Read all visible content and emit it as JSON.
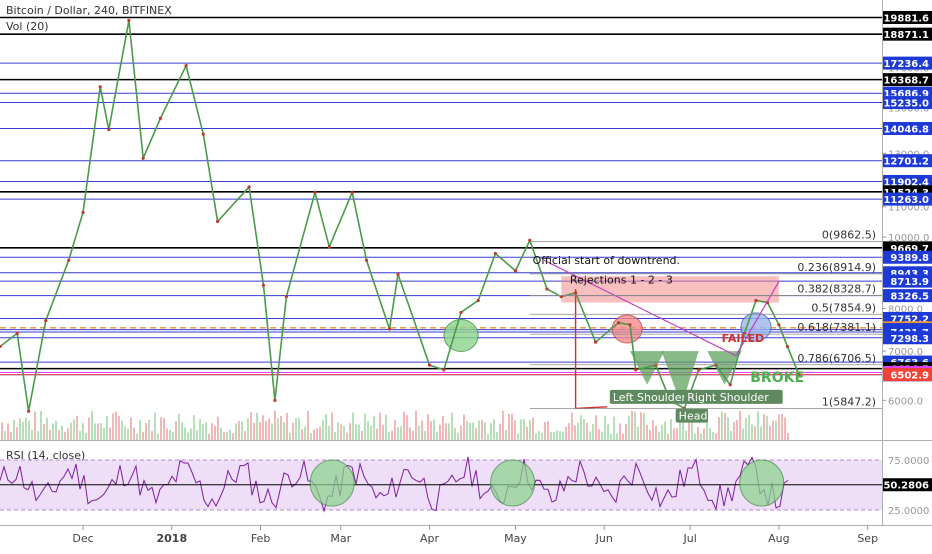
{
  "header": {
    "title": "Bitcoin / Dollar, 240, BITFINEX",
    "volume_label": "Vol (20)"
  },
  "rsi": {
    "label": "RSI (14, close)",
    "current": "50.2806",
    "levels": [
      "75.0000",
      "25.0000"
    ],
    "range": [
      10,
      90
    ]
  },
  "chart_data": {
    "type": "line",
    "title": "Bitcoin / Dollar, 240, BITFINEX",
    "xlabel": "",
    "ylabel": "",
    "y_scale": "log",
    "ylim": [
      5300,
      21000
    ],
    "x_range": [
      "2017-11-02",
      "2018-09-06"
    ],
    "x_ticks": [
      {
        "date": "2017-12-01",
        "label": "Dec"
      },
      {
        "date": "2018-01-01",
        "label": "2018"
      },
      {
        "date": "2018-02-01",
        "label": "Feb"
      },
      {
        "date": "2018-03-01",
        "label": "Mar"
      },
      {
        "date": "2018-04-01",
        "label": "Apr"
      },
      {
        "date": "2018-05-01",
        "label": "May"
      },
      {
        "date": "2018-06-01",
        "label": "Jun"
      },
      {
        "date": "2018-07-01",
        "label": "Jul"
      },
      {
        "date": "2018-08-01",
        "label": "Aug"
      },
      {
        "date": "2018-09-01",
        "label": "Sep"
      }
    ],
    "y_ticks": [
      "21000.0",
      "19000.0",
      "17000.0",
      "15000.0",
      "13000.0",
      "12000.0",
      "11000.0",
      "10000.0",
      "9000.0",
      "8000.0",
      "7000.0",
      "6000.0"
    ],
    "price_series": [
      {
        "date": "2017-11-02",
        "value": 7100
      },
      {
        "date": "2017-11-08",
        "value": 7400
      },
      {
        "date": "2017-11-12",
        "value": 5800
      },
      {
        "date": "2017-11-18",
        "value": 7700
      },
      {
        "date": "2017-11-26",
        "value": 9300
      },
      {
        "date": "2017-12-01",
        "value": 10800
      },
      {
        "date": "2017-12-07",
        "value": 16000
      },
      {
        "date": "2017-12-10",
        "value": 14000
      },
      {
        "date": "2017-12-17",
        "value": 19700
      },
      {
        "date": "2017-12-22",
        "value": 12800
      },
      {
        "date": "2017-12-28",
        "value": 14500
      },
      {
        "date": "2018-01-06",
        "value": 17100
      },
      {
        "date": "2018-01-12",
        "value": 13800
      },
      {
        "date": "2018-01-17",
        "value": 10500
      },
      {
        "date": "2018-01-28",
        "value": 11700
      },
      {
        "date": "2018-02-02",
        "value": 8600
      },
      {
        "date": "2018-02-06",
        "value": 6000
      },
      {
        "date": "2018-02-10",
        "value": 8300
      },
      {
        "date": "2018-02-20",
        "value": 11500
      },
      {
        "date": "2018-02-25",
        "value": 9700
      },
      {
        "date": "2018-03-05",
        "value": 11500
      },
      {
        "date": "2018-03-10",
        "value": 9300
      },
      {
        "date": "2018-03-18",
        "value": 7500
      },
      {
        "date": "2018-03-21",
        "value": 8900
      },
      {
        "date": "2018-04-01",
        "value": 6700
      },
      {
        "date": "2018-04-06",
        "value": 6600
      },
      {
        "date": "2018-04-12",
        "value": 7900
      },
      {
        "date": "2018-04-18",
        "value": 8200
      },
      {
        "date": "2018-04-24",
        "value": 9500
      },
      {
        "date": "2018-05-01",
        "value": 9000
      },
      {
        "date": "2018-05-06",
        "value": 9900
      },
      {
        "date": "2018-05-12",
        "value": 8500
      },
      {
        "date": "2018-05-17",
        "value": 8300
      },
      {
        "date": "2018-05-22",
        "value": 8400
      },
      {
        "date": "2018-05-29",
        "value": 7200
      },
      {
        "date": "2018-06-06",
        "value": 7650
      },
      {
        "date": "2018-06-10",
        "value": 7600
      },
      {
        "date": "2018-06-12",
        "value": 6600
      },
      {
        "date": "2018-06-19",
        "value": 6700
      },
      {
        "date": "2018-06-24",
        "value": 6000
      },
      {
        "date": "2018-06-29",
        "value": 5850
      },
      {
        "date": "2018-07-04",
        "value": 6600
      },
      {
        "date": "2018-07-10",
        "value": 6700
      },
      {
        "date": "2018-07-15",
        "value": 6300
      },
      {
        "date": "2018-07-20",
        "value": 7400
      },
      {
        "date": "2018-07-24",
        "value": 8200
      },
      {
        "date": "2018-07-28",
        "value": 8150
      },
      {
        "date": "2018-08-01",
        "value": 7600
      },
      {
        "date": "2018-08-04",
        "value": 7100
      },
      {
        "date": "2018-08-08",
        "value": 6500
      }
    ],
    "horizontal_levels": [
      {
        "label": "19881.6",
        "value": 19881.6,
        "line": "black",
        "tag_bg": "#000000"
      },
      {
        "label": "18871.1",
        "value": 18871.1,
        "line": "black",
        "tag_bg": "#000000"
      },
      {
        "label": "17236.4",
        "value": 17236.4,
        "line": "blue",
        "tag_bg": "#1e3ad6"
      },
      {
        "label": "16368.7",
        "value": 16368.7,
        "line": "black",
        "tag_bg": "#000000"
      },
      {
        "label": "15686.9",
        "value": 15686.9,
        "line": "blue",
        "tag_bg": "#1e3ad6"
      },
      {
        "label": "15235.0",
        "value": 15235.0,
        "line": "blue",
        "tag_bg": "#1e3ad6"
      },
      {
        "label": "14046.8",
        "value": 14046.8,
        "line": "blue",
        "tag_bg": "#1e3ad6"
      },
      {
        "label": "12701.2",
        "value": 12701.2,
        "line": "blue",
        "tag_bg": "#1e3ad6"
      },
      {
        "label": "11902.4",
        "value": 11902.4,
        "line": "blue",
        "tag_bg": "#1e3ad6"
      },
      {
        "label": "11524.3",
        "value": 11524.3,
        "line": "black",
        "tag_bg": "#000000"
      },
      {
        "label": "11263.0",
        "value": 11263.0,
        "line": "blue",
        "tag_bg": "#1e3ad6"
      },
      {
        "label": "9669.7",
        "value": 9669.7,
        "line": "black",
        "tag_bg": "#000000"
      },
      {
        "label": "9389.8",
        "value": 9389.8,
        "line": "blue",
        "tag_bg": "#1e3ad6"
      },
      {
        "label": "8943.3",
        "value": 8943.3,
        "line": "blue",
        "tag_bg": "#1e3ad6"
      },
      {
        "label": "8713.9",
        "value": 8713.9,
        "line": "blue",
        "tag_bg": "#1e3ad6"
      },
      {
        "label": "8326.5",
        "value": 8326.5,
        "line": "blue",
        "tag_bg": "#1e3ad6"
      },
      {
        "label": "7752.2",
        "value": 7752.2,
        "line": "blue",
        "tag_bg": "#1e3ad6"
      },
      {
        "label": "7529.2",
        "value": 7529.2,
        "line": "orange-dashed",
        "tag_bg": "#f0922e"
      },
      {
        "label": "7487.8",
        "value": 7487.8,
        "line": "blue",
        "tag_bg": "#1e3ad6"
      },
      {
        "label": "7431.7",
        "value": 7431.7,
        "line": "blue",
        "tag_bg": "#1e3ad6"
      },
      {
        "label": "7298.3",
        "value": 7298.3,
        "line": "blue",
        "tag_bg": "#1e3ad6"
      },
      {
        "label": "6763.6",
        "value": 6763.6,
        "line": "blue",
        "tag_bg": "#1e3ad6"
      },
      {
        "label": "6626.5",
        "value": 6626.5,
        "line": "black",
        "tag_bg": "#000000"
      },
      {
        "label": "6547.3",
        "value": 6547.3,
        "line": "magenta",
        "tag_bg": "#e040fb"
      },
      {
        "label": "6500.1",
        "value": 6500.1,
        "line": "blue",
        "tag_bg": "#1e3ad6"
      },
      {
        "label": "6502.9",
        "value": 6502.9,
        "line": "red",
        "tag_bg": "#f44336"
      }
    ],
    "fibonacci": [
      {
        "label": "0(9862.5)",
        "value": 9862.5
      },
      {
        "label": "0.236(8914.9)",
        "value": 8914.9
      },
      {
        "label": "0.382(8328.7)",
        "value": 8328.7
      },
      {
        "label": "0.5(7854.9)",
        "value": 7854.9
      },
      {
        "label": "0.618(7381.1)",
        "value": 7381.1
      },
      {
        "label": "0.786(6706.5)",
        "value": 6706.5
      },
      {
        "label": "1(5847.2)",
        "value": 5847.2
      }
    ],
    "annotations": [
      {
        "text": "Official start of downtrend.",
        "date": "2018-05-07",
        "value": 9200,
        "color": "#111111"
      },
      {
        "text": "Rejections 1 - 2 - 3",
        "date": "2018-05-20",
        "value": 8650,
        "color": "#111111"
      },
      {
        "text": "FAILED",
        "date": "2018-07-12",
        "value": 7200,
        "color": "#d32f2f"
      },
      {
        "text": "BROKE",
        "date": "2018-07-22",
        "value": 6350,
        "color": "#4caf50"
      },
      {
        "text": "Left Shoulder",
        "date": "2018-06-04",
        "value": 5990,
        "color": "#ffffff"
      },
      {
        "text": "Right Shoulder",
        "date": "2018-06-30",
        "value": 5990,
        "color": "#ffffff"
      },
      {
        "text": "Head",
        "date": "2018-06-27",
        "value": 5650,
        "color": "#ffffff"
      }
    ],
    "rsi_circle_dates": [
      "2018-02-26",
      "2018-04-30",
      "2018-07-26"
    ],
    "legend": "none",
    "grid": false
  }
}
